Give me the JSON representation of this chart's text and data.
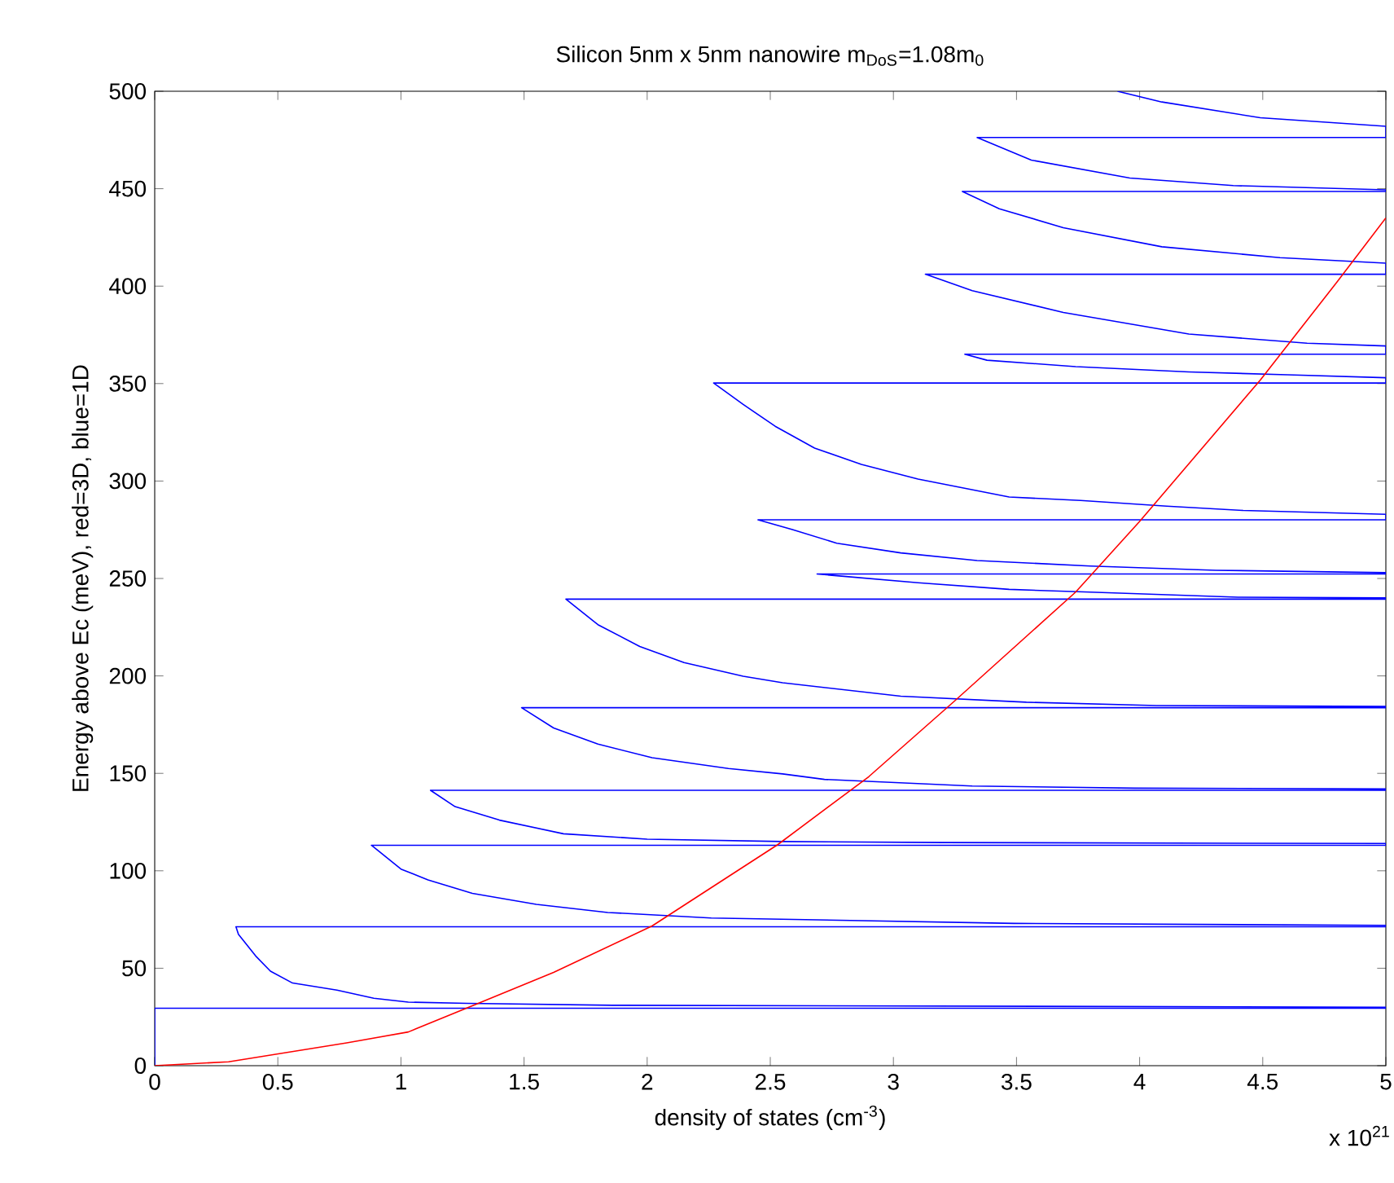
{
  "chart_data": {
    "type": "line",
    "title": "Silicon 5nm x 5nm nanowire  m$_{DoS}$=1.08m$_{0}$",
    "xlabel": "density of states (cm$^{-3}$)",
    "ylabel": "Energy above Ec (meV), red=3D, blue=1D",
    "annotations": [
      "x 10$^{21}$"
    ],
    "xlim": [
      0,
      5
    ],
    "ylim": [
      0,
      500
    ],
    "xticks": [
      0,
      0.5,
      1,
      1.5,
      2,
      2.5,
      3,
      3.5,
      4,
      4.5,
      5
    ],
    "yticks": [
      0,
      50,
      100,
      150,
      200,
      250,
      300,
      350,
      400,
      450,
      500
    ],
    "grid": false,
    "marker": "none",
    "line_style": "solid",
    "series": [
      {
        "color": "#0000ff",
        "x": [
          0,
          0,
          5,
          5,
          1.86,
          1.27,
          1.03,
          0.89,
          0.74,
          0.56,
          0.47,
          0.41,
          0.34,
          0.33,
          5,
          5,
          3.49,
          2.26,
          1.84,
          1.55,
          1.29,
          1.11,
          1,
          0.88,
          5,
          5,
          3.2,
          2.55,
          2,
          1.66,
          1.4,
          1.22,
          1.12,
          5,
          5,
          3.98,
          3.32,
          2.72,
          2.55,
          2.33,
          2.02,
          1.8,
          1.62,
          1.49,
          5,
          5,
          4.07,
          3.54,
          3.03,
          2.55,
          2.39,
          2.15,
          1.97,
          1.8,
          1.67,
          5,
          5,
          4.4,
          3.8,
          3.47,
          3.1,
          2.77,
          2.69,
          5,
          5,
          4.31,
          3.8,
          3.34,
          3.03,
          2.77,
          2.59,
          2.45,
          5,
          5,
          4.42,
          4.11,
          3.76,
          3.47,
          3.1,
          2.87,
          2.68,
          2.52,
          2.39,
          2.27,
          5,
          5,
          4.6,
          4.2,
          3.74,
          3.38,
          3.29,
          5,
          5,
          4.68,
          4.2,
          3.69,
          3.32,
          3.13,
          5,
          5,
          4.57,
          4.09,
          3.69,
          3.43,
          3.28,
          5,
          5,
          4.38,
          3.96,
          3.56,
          3.34,
          5,
          5,
          4.49,
          4.09,
          3.91
        ],
        "values": [
          0,
          29.5,
          29.5,
          30,
          31,
          32,
          32.6,
          34.6,
          38.8,
          42.4,
          48.5,
          56.3,
          67.4,
          71.3,
          71.3,
          72,
          73,
          75.8,
          78.6,
          82.8,
          88.4,
          95.3,
          100.9,
          113.1,
          113.1,
          114,
          114.5,
          115,
          116.2,
          119,
          126,
          132.9,
          141.3,
          141.3,
          142,
          142.4,
          143.5,
          146.9,
          149.7,
          152.5,
          158,
          165,
          173.3,
          183.7,
          183.7,
          184.3,
          184.8,
          186.5,
          189.6,
          196.5,
          199.8,
          206.8,
          215.1,
          226.3,
          239.4,
          239.4,
          240,
          240.4,
          243,
          244.4,
          247.8,
          251.4,
          252.3,
          252.3,
          253,
          254.2,
          256.4,
          259.2,
          263.1,
          268.1,
          275.1,
          280.1,
          280.1,
          282.9,
          284.9,
          287.1,
          290,
          291.8,
          301,
          308.5,
          316.9,
          328.1,
          339.3,
          350.3,
          350.3,
          353,
          354.5,
          356,
          358.7,
          362,
          365.1,
          365.1,
          369.3,
          370.7,
          375.4,
          386.5,
          397.7,
          406.1,
          406.1,
          411.8,
          414.6,
          420.2,
          430,
          439.7,
          448.6,
          448.6,
          449.4,
          451.6,
          455.5,
          464.7,
          476.3,
          476.3,
          482,
          486.4,
          494.5,
          500
        ]
      },
      {
        "color": "#ff0000",
        "x": [
          0,
          0.3,
          0.78,
          1.03,
          1.31,
          1.62,
          2.02,
          2.53,
          2.9,
          3.25,
          3.74,
          4,
          4.49,
          4.8,
          5
        ],
        "values": [
          0,
          2,
          11.7,
          17.3,
          31.8,
          47.9,
          71.7,
          113.4,
          148.3,
          187.3,
          243,
          279.3,
          351.8,
          401.9,
          435
        ]
      }
    ]
  }
}
